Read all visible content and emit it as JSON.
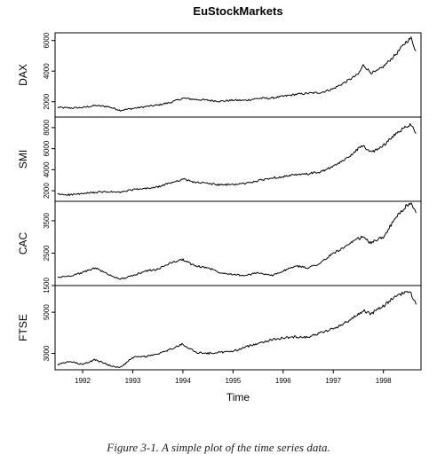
{
  "figure": {
    "caption": "Figure 3-1. A simple plot of the time series data."
  },
  "chart_data": {
    "type": "line",
    "title": "EuStockMarkets",
    "xlabel": "Time",
    "xlim": [
      1991.45,
      1998.75
    ],
    "x_ticks": [
      1992,
      1993,
      1994,
      1995,
      1996,
      1997,
      1998
    ],
    "grid": false,
    "legend": "none",
    "line_color": "#000000",
    "panels": [
      {
        "name": "DAX",
        "ylim": [
          1000,
          6500
        ],
        "y_ticks": [
          2000,
          4000,
          6000
        ],
        "x": [
          1991.5,
          1991.75,
          1992.0,
          1992.25,
          1992.5,
          1992.75,
          1993.0,
          1993.25,
          1993.5,
          1993.75,
          1994.0,
          1994.25,
          1994.5,
          1994.75,
          1995.0,
          1995.25,
          1995.5,
          1995.75,
          1996.0,
          1996.25,
          1996.5,
          1996.75,
          1997.0,
          1997.25,
          1997.5,
          1997.6,
          1997.75,
          1997.85,
          1998.0,
          1998.25,
          1998.45,
          1998.55,
          1998.65
        ],
        "values": [
          1630,
          1590,
          1620,
          1750,
          1690,
          1440,
          1560,
          1680,
          1780,
          1950,
          2230,
          2150,
          2100,
          2030,
          2100,
          2090,
          2220,
          2230,
          2350,
          2480,
          2550,
          2600,
          2850,
          3300,
          3800,
          4400,
          3900,
          3950,
          4300,
          5100,
          5900,
          6150,
          5300
        ]
      },
      {
        "name": "SMI",
        "ylim": [
          1000,
          9000
        ],
        "y_ticks": [
          2000,
          4000,
          6000,
          8000
        ],
        "x": [
          1991.5,
          1991.75,
          1992.0,
          1992.25,
          1992.5,
          1992.75,
          1993.0,
          1993.25,
          1993.5,
          1993.75,
          1994.0,
          1994.25,
          1994.5,
          1994.75,
          1995.0,
          1995.25,
          1995.5,
          1995.75,
          1996.0,
          1996.25,
          1996.5,
          1996.75,
          1997.0,
          1997.25,
          1997.5,
          1997.6,
          1997.75,
          1997.85,
          1998.0,
          1998.25,
          1998.45,
          1998.55,
          1998.65
        ],
        "values": [
          1680,
          1620,
          1720,
          1850,
          1900,
          1850,
          2100,
          2200,
          2350,
          2750,
          3100,
          2800,
          2700,
          2550,
          2600,
          2700,
          2950,
          3200,
          3350,
          3500,
          3600,
          3800,
          4300,
          5000,
          6000,
          6300,
          5600,
          5900,
          6300,
          7400,
          8100,
          8350,
          7500
        ]
      },
      {
        "name": "CAC",
        "ylim": [
          1500,
          4100
        ],
        "y_ticks": [
          1500,
          2500,
          3500
        ],
        "x": [
          1991.5,
          1991.75,
          1992.0,
          1992.25,
          1992.5,
          1992.75,
          1993.0,
          1993.25,
          1993.5,
          1993.75,
          1994.0,
          1994.25,
          1994.5,
          1994.75,
          1995.0,
          1995.25,
          1995.5,
          1995.75,
          1996.0,
          1996.25,
          1996.5,
          1996.75,
          1997.0,
          1997.25,
          1997.5,
          1997.6,
          1997.75,
          1997.85,
          1998.0,
          1998.25,
          1998.45,
          1998.55,
          1998.65
        ],
        "values": [
          1750,
          1800,
          1900,
          2050,
          1850,
          1700,
          1800,
          1950,
          2000,
          2200,
          2300,
          2100,
          2050,
          1900,
          1850,
          1800,
          1900,
          1800,
          1950,
          2100,
          2050,
          2200,
          2500,
          2700,
          2950,
          3000,
          2800,
          2900,
          3000,
          3600,
          3950,
          4000,
          3750
        ]
      },
      {
        "name": "FTSE",
        "ylim": [
          2200,
          6300
        ],
        "y_ticks": [
          3000,
          5000
        ],
        "x": [
          1991.5,
          1991.75,
          1992.0,
          1992.25,
          1992.5,
          1992.75,
          1993.0,
          1993.25,
          1993.5,
          1993.75,
          1994.0,
          1994.25,
          1994.5,
          1994.75,
          1995.0,
          1995.25,
          1995.5,
          1995.75,
          1996.0,
          1996.25,
          1996.5,
          1996.75,
          1997.0,
          1997.25,
          1997.5,
          1997.6,
          1997.75,
          1997.85,
          1998.0,
          1998.25,
          1998.45,
          1998.55,
          1998.65
        ],
        "values": [
          2450,
          2600,
          2450,
          2700,
          2450,
          2300,
          2800,
          2850,
          2950,
          3200,
          3450,
          3050,
          3000,
          3050,
          3100,
          3300,
          3500,
          3650,
          3750,
          3800,
          3800,
          4000,
          4200,
          4500,
          4900,
          5100,
          4900,
          5100,
          5300,
          5800,
          6000,
          5900,
          5400
        ]
      }
    ]
  }
}
